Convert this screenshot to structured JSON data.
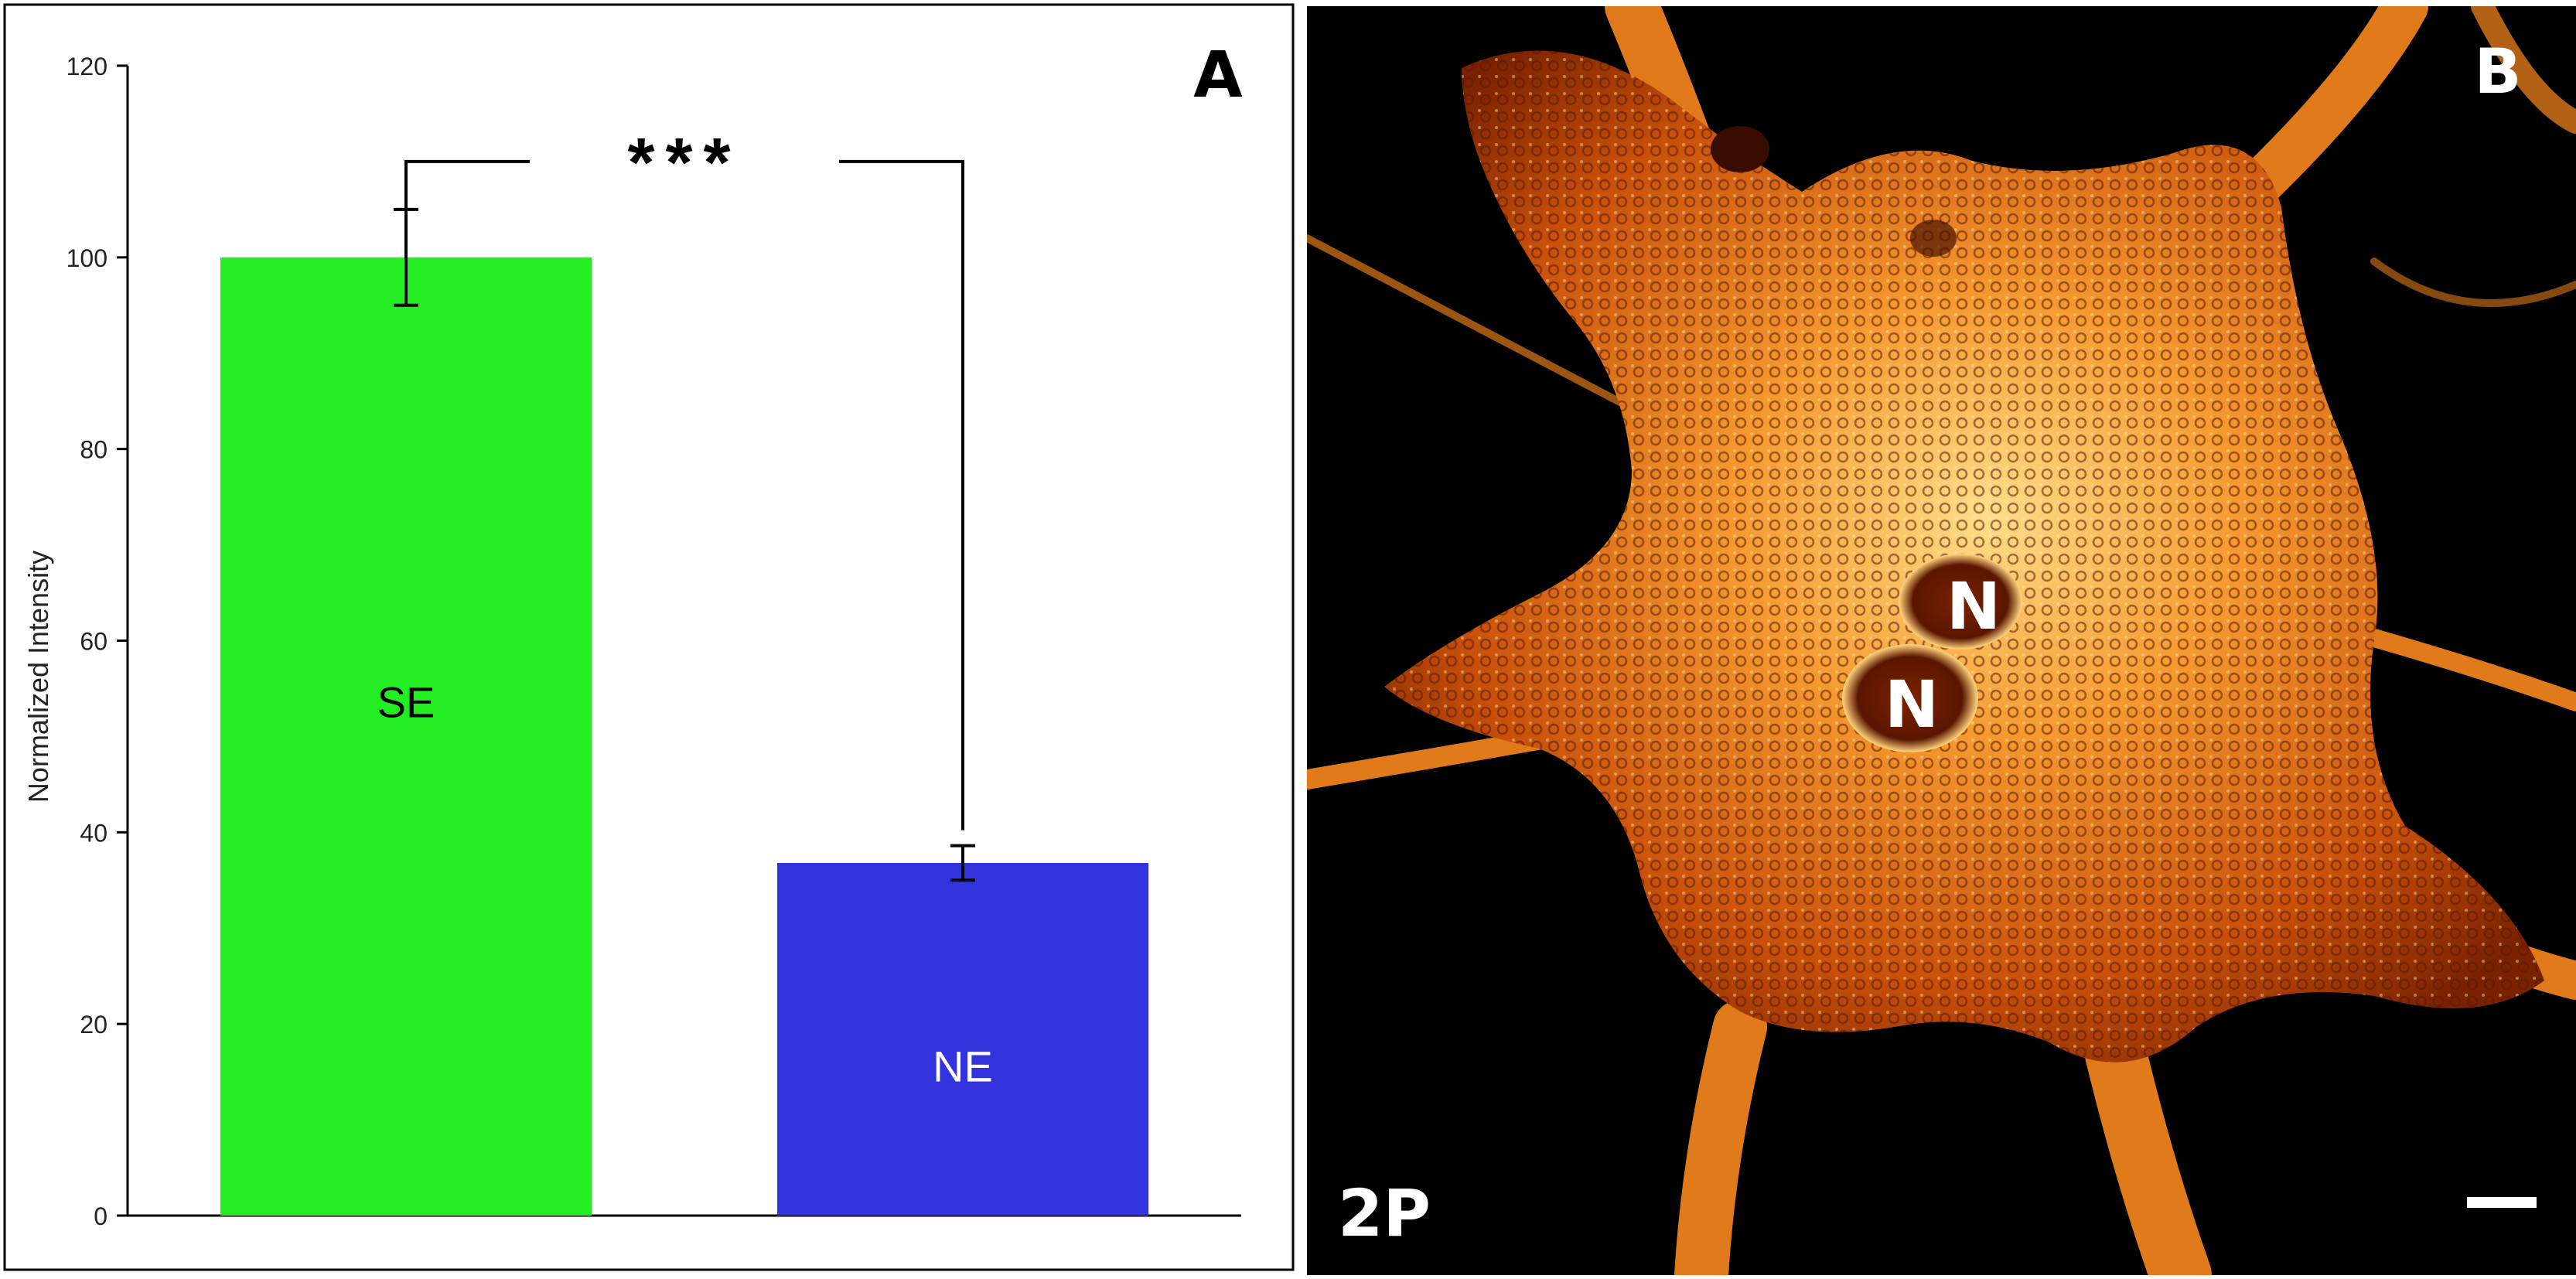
{
  "chart_data": {
    "type": "bar",
    "panel_label": "A",
    "ylabel": "Normalized Intensity",
    "ylim": [
      0,
      120
    ],
    "yticks": [
      0,
      20,
      40,
      60,
      80,
      100,
      120
    ],
    "categories": [
      "SE",
      "NE"
    ],
    "values": [
      100,
      36.8
    ],
    "errors": [
      5,
      1.8
    ],
    "bar_colors": [
      "#22ee22",
      "#3333dd"
    ],
    "bar_label_colors": [
      "#000000",
      "#ffffff"
    ],
    "significance": "***",
    "grid": false,
    "legend": "none"
  },
  "image_panel": {
    "panel_label": "B",
    "imaging_label": "2P",
    "nucleus_labels": [
      "N",
      "N"
    ],
    "colors": {
      "background": "#000000",
      "cell_dark": "#8a2a00",
      "cell_mid": "#d9660f",
      "cell_bright": "#ffd27a"
    }
  }
}
